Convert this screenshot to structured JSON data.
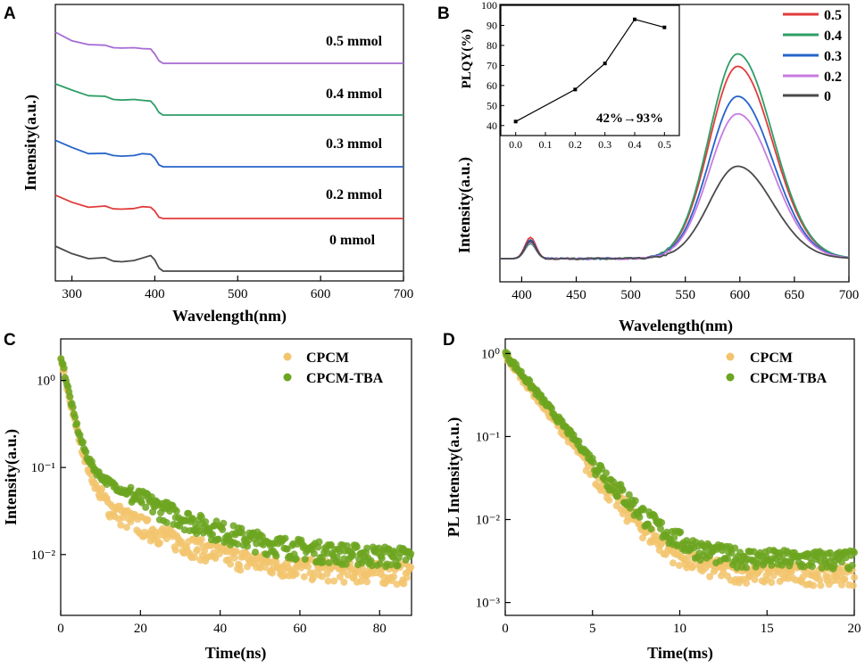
{
  "chart_data": [
    {
      "panel": "A",
      "type": "line",
      "xlabel": "Wavelength(nm)",
      "ylabel": "Intensity(a.u.)",
      "xlim": [
        280,
        700
      ],
      "xticks": [
        300,
        400,
        500,
        600,
        700
      ],
      "yticks_shown": false,
      "series": [
        {
          "name": "0.5 mmol",
          "color": "#A66BD3",
          "offset": 4,
          "x": [
            280,
            300,
            320,
            340,
            350,
            360,
            375,
            385,
            395,
            400,
            405,
            410,
            420,
            700
          ],
          "y": [
            1.0,
            0.72,
            0.6,
            0.58,
            0.5,
            0.49,
            0.5,
            0.47,
            0.46,
            0.3,
            0.08,
            0.0,
            0.0,
            0.0
          ]
        },
        {
          "name": "0.4 mmol",
          "color": "#2E9E66",
          "offset": 3,
          "x": [
            280,
            300,
            320,
            340,
            350,
            360,
            375,
            385,
            395,
            400,
            405,
            410,
            420,
            700
          ],
          "y": [
            1.0,
            0.8,
            0.62,
            0.6,
            0.5,
            0.48,
            0.5,
            0.47,
            0.45,
            0.3,
            0.08,
            0.0,
            0.0,
            0.0
          ]
        },
        {
          "name": "0.3 mmol",
          "color": "#2563C9",
          "offset": 2,
          "x": [
            280,
            300,
            320,
            340,
            350,
            360,
            375,
            385,
            395,
            400,
            405,
            410,
            420,
            700
          ],
          "y": [
            0.85,
            0.62,
            0.42,
            0.43,
            0.36,
            0.34,
            0.36,
            0.42,
            0.4,
            0.28,
            0.06,
            0.0,
            0.0,
            0.0
          ]
        },
        {
          "name": "0.2 mmol",
          "color": "#E23B3B",
          "offset": 1,
          "x": [
            280,
            300,
            320,
            340,
            350,
            360,
            375,
            385,
            395,
            400,
            405,
            410,
            420,
            700
          ],
          "y": [
            0.75,
            0.52,
            0.36,
            0.4,
            0.31,
            0.3,
            0.32,
            0.38,
            0.36,
            0.24,
            0.04,
            0.0,
            0.0,
            0.0
          ]
        },
        {
          "name": "0 mmol",
          "color": "#4A4A4A",
          "offset": 0,
          "x": [
            280,
            300,
            320,
            340,
            350,
            360,
            375,
            385,
            395,
            400,
            405,
            410,
            420,
            700
          ],
          "y": [
            0.8,
            0.56,
            0.4,
            0.43,
            0.32,
            0.3,
            0.34,
            0.42,
            0.5,
            0.36,
            0.1,
            0.0,
            0.0,
            0.0
          ]
        }
      ]
    },
    {
      "panel": "B",
      "type": "line",
      "xlabel": "Wavelength(nm)",
      "ylabel": "Intensity(a.u.)",
      "xlim": [
        380,
        700
      ],
      "xticks": [
        400,
        450,
        500,
        550,
        600,
        650,
        700
      ],
      "yticks_shown": false,
      "legend_position": "top-right",
      "series": [
        {
          "name": "0.5",
          "color": "#E23B3B",
          "excitation_peak": 0.085,
          "peak": 0.77
        },
        {
          "name": "0.4",
          "color": "#2E9E66",
          "excitation_peak": 0.06,
          "peak": 0.82
        },
        {
          "name": "0.3",
          "color": "#2563C9",
          "excitation_peak": 0.075,
          "peak": 0.65
        },
        {
          "name": "0.2",
          "color": "#C77BE0",
          "excitation_peak": 0.065,
          "peak": 0.58
        },
        {
          "name": "0",
          "color": "#4A4A4A",
          "excitation_peak": 0.07,
          "peak": 0.37
        }
      ],
      "inset": {
        "type": "line",
        "ylabel": "PLQY(%)",
        "xlim": [
          -0.05,
          0.55
        ],
        "ylim": [
          35,
          100
        ],
        "xticks": [
          0.0,
          0.1,
          0.2,
          0.3,
          0.4,
          0.5
        ],
        "yticks": [
          40,
          50,
          60,
          70,
          80,
          90,
          100
        ],
        "x": [
          0.0,
          0.2,
          0.3,
          0.4,
          0.5
        ],
        "y": [
          42,
          58,
          71,
          93,
          89
        ],
        "annotation": "42%→93%"
      }
    },
    {
      "panel": "C",
      "type": "scatter",
      "xlabel": "Time(ns)",
      "ylabel": "Intensity(a.u.)",
      "xlim": [
        0,
        88
      ],
      "ylim_log": [
        0.002,
        3
      ],
      "xticks": [
        0,
        20,
        40,
        60,
        80
      ],
      "yticks": [
        "10⁰",
        "10⁻¹",
        "10⁻²"
      ],
      "yticks_values": [
        1,
        0.1,
        0.01
      ],
      "legend_position": "top-right",
      "series": [
        {
          "name": "CPCM",
          "color": "#F2C46D",
          "a1": 1.7,
          "t1": 2.0,
          "a2": 0.06,
          "t2": 15,
          "floor": 0.006
        },
        {
          "name": "CPCM-TBA",
          "color": "#6CA520",
          "a1": 1.9,
          "t1": 1.8,
          "a2": 0.12,
          "t2": 16,
          "floor": 0.009
        }
      ]
    },
    {
      "panel": "D",
      "type": "scatter",
      "xlabel": "Time(ms)",
      "ylabel": "PL Intensity(a.u.)",
      "xlim": [
        0,
        20
      ],
      "ylim_log": [
        0.0007,
        1.5
      ],
      "xticks": [
        0,
        5,
        10,
        15,
        20
      ],
      "yticks": [
        "10⁰",
        "10⁻¹",
        "10⁻²",
        "10⁻³"
      ],
      "yticks_values": [
        1,
        0.1,
        0.01,
        0.001
      ],
      "legend_position": "top-right",
      "series": [
        {
          "name": "CPCM",
          "color": "#F2C46D",
          "a": 0.95,
          "tau": 1.55,
          "floor": 0.0022
        },
        {
          "name": "CPCM-TBA",
          "color": "#6CA520",
          "a": 1.0,
          "tau": 1.65,
          "floor": 0.0033
        }
      ]
    }
  ],
  "panel_letters": {
    "a": "A",
    "b": "B",
    "c": "C",
    "d": "D"
  },
  "panel_a_labels": {
    "s5": "0.5 mmol",
    "s4": "0.4 mmol",
    "s3": "0.3 mmol",
    "s2": "0.2 mmol",
    "s0": "0 mmol"
  },
  "panel_b_legend": {
    "l5": "0.5",
    "l4": "0.4",
    "l3": "0.3",
    "l2": "0.2",
    "l0": "0"
  },
  "legend_cd": {
    "cpcm": "CPCM",
    "tba": "CPCM-TBA"
  },
  "axis_titles": {
    "a_x": "Wavelength(nm)",
    "a_y": "Intensity(a.u.)",
    "b_x": "Wavelength(nm)",
    "b_y": "Intensity(a.u.)",
    "b_inset_y": "PLQY(%)",
    "c_x": "Time(ns)",
    "c_y": "Intensity(a.u.)",
    "d_x": "Time(ms)",
    "d_y": "PL Intensity(a.u.)"
  },
  "inset_annotation": "42%→93%"
}
